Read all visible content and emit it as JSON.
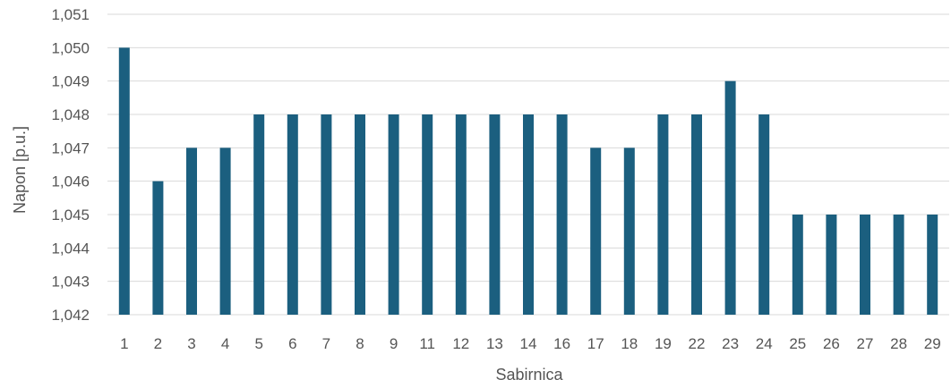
{
  "chart_data": {
    "type": "bar",
    "xlabel": "Sabirnica",
    "ylabel": "Napon [p.u.]",
    "categories": [
      "1",
      "2",
      "3",
      "4",
      "5",
      "6",
      "7",
      "8",
      "9",
      "11",
      "12",
      "13",
      "14",
      "16",
      "17",
      "18",
      "19",
      "22",
      "23",
      "24",
      "25",
      "26",
      "27",
      "28",
      "29"
    ],
    "values": [
      1.05,
      1.046,
      1.047,
      1.047,
      1.048,
      1.048,
      1.048,
      1.048,
      1.048,
      1.048,
      1.048,
      1.048,
      1.048,
      1.048,
      1.047,
      1.047,
      1.048,
      1.048,
      1.049,
      1.048,
      1.045,
      1.045,
      1.045,
      1.045,
      1.045
    ],
    "ylim": [
      1.042,
      1.051
    ],
    "yticks": [
      "1,042",
      "1,043",
      "1,044",
      "1,045",
      "1,046",
      "1,047",
      "1,048",
      "1,049",
      "1,050",
      "1,051"
    ],
    "grid": true,
    "bar_color": "#1b5f7f",
    "grid_color": "#d9d9d9"
  }
}
